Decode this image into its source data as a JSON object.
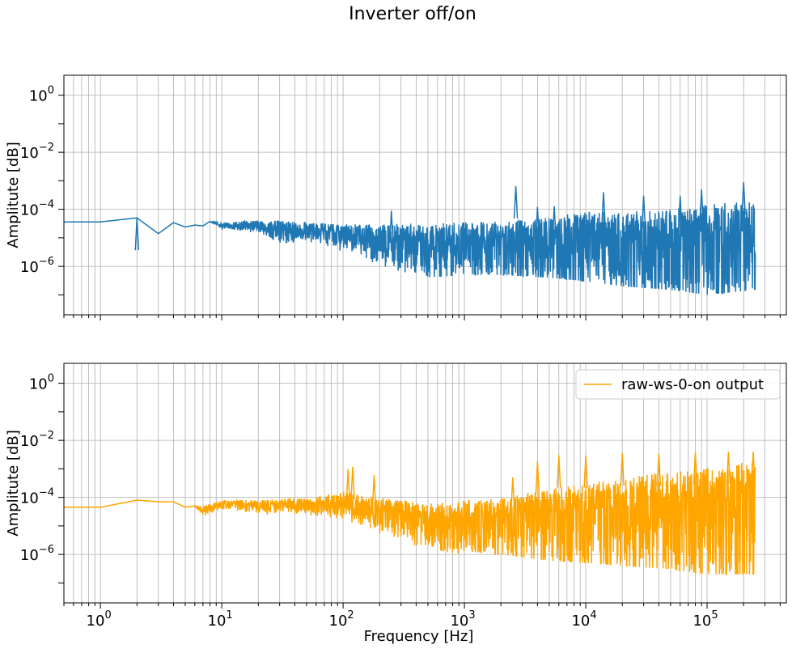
{
  "figure": {
    "suptitle": "Inverter off/on"
  },
  "chart_data": [
    {
      "type": "line",
      "xscale": "log",
      "yscale": "log",
      "xlim": [
        0.5,
        450000
      ],
      "ylim": [
        2e-08,
        5
      ],
      "xlabel": "",
      "ylabel": "Amplitute [dB]",
      "grid": "major and minor",
      "xticklabels_visible": false,
      "xticks": [
        {
          "value": 1,
          "base": "10",
          "exp": "0"
        },
        {
          "value": 10,
          "base": "10",
          "exp": "1"
        },
        {
          "value": 100,
          "base": "10",
          "exp": "2"
        },
        {
          "value": 1000,
          "base": "10",
          "exp": "3"
        },
        {
          "value": 10000,
          "base": "10",
          "exp": "4"
        },
        {
          "value": 100000,
          "base": "10",
          "exp": "5"
        }
      ],
      "yticks": [
        {
          "value": 1,
          "base": "10",
          "exp": "0"
        },
        {
          "value": 0.01,
          "base": "10",
          "exp": "−2"
        },
        {
          "value": 0.0001,
          "base": "10",
          "exp": "−4"
        },
        {
          "value": 1e-06,
          "base": "10",
          "exp": "−6"
        }
      ],
      "series": [
        {
          "color": "#1f77b4",
          "x_range": [
            0.5,
            250000
          ],
          "envelope": [
            {
              "f": 0.5,
              "lo": 3.6e-05,
              "hi": 3.6e-05
            },
            {
              "f": 1,
              "lo": 3.6e-05,
              "hi": 3.6e-05
            },
            {
              "f": 2,
              "lo": 5e-05,
              "hi": 5e-05
            },
            {
              "f": 3,
              "lo": 1.4e-05,
              "hi": 1.4e-05
            },
            {
              "f": 4,
              "lo": 3.4e-05,
              "hi": 3.4e-05
            },
            {
              "f": 5,
              "lo": 2.4e-05,
              "hi": 2.4e-05
            },
            {
              "f": 6,
              "lo": 2.8e-05,
              "hi": 2.8e-05
            },
            {
              "f": 7,
              "lo": 2.6e-05,
              "hi": 2.6e-05
            },
            {
              "f": 8,
              "lo": 3.8e-05,
              "hi": 3.8e-05
            },
            {
              "f": 10,
              "lo": 1.6e-05,
              "hi": 3.5e-05
            },
            {
              "f": 20,
              "lo": 1.2e-05,
              "hi": 4.2e-05
            },
            {
              "f": 30,
              "lo": 4e-06,
              "hi": 4e-05
            },
            {
              "f": 50,
              "lo": 6e-06,
              "hi": 3.5e-05
            },
            {
              "f": 100,
              "lo": 3e-06,
              "hi": 3e-05
            },
            {
              "f": 200,
              "lo": 1e-06,
              "hi": 3e-05
            },
            {
              "f": 500,
              "lo": 4e-07,
              "hi": 3.2e-05
            },
            {
              "f": 1000,
              "lo": 5e-07,
              "hi": 3.5e-05
            },
            {
              "f": 2000,
              "lo": 5e-07,
              "hi": 4e-05
            },
            {
              "f": 5000,
              "lo": 4e-07,
              "hi": 5e-05
            },
            {
              "f": 10000,
              "lo": 3e-07,
              "hi": 9e-05
            },
            {
              "f": 20000,
              "lo": 2e-07,
              "hi": 8e-05
            },
            {
              "f": 50000,
              "lo": 1.5e-07,
              "hi": 0.0001
            },
            {
              "f": 100000,
              "lo": 1e-07,
              "hi": 0.00015
            },
            {
              "f": 250000,
              "lo": 1.5e-07,
              "hi": 0.0002
            }
          ],
          "peaks": [
            {
              "f": 2,
              "value": 5e-05
            },
            {
              "f": 250,
              "value": 9e-05
            },
            {
              "f": 2650,
              "value": 0.00065
            },
            {
              "f": 4000,
              "value": 0.00012
            },
            {
              "f": 5500,
              "value": 0.00013
            },
            {
              "f": 14000,
              "value": 0.0004
            },
            {
              "f": 30000,
              "value": 0.0003
            },
            {
              "f": 60000,
              "value": 0.0003
            },
            {
              "f": 90000,
              "value": 0.0005
            },
            {
              "f": 200000,
              "value": 0.0009
            }
          ]
        }
      ]
    },
    {
      "type": "line",
      "xscale": "log",
      "yscale": "log",
      "xlim": [
        0.5,
        450000
      ],
      "ylim": [
        2e-08,
        5
      ],
      "xlabel": "Frequency [Hz]",
      "ylabel": "Amplitute [dB]",
      "grid": "major and minor",
      "legend": "top-right",
      "xticks": [
        {
          "value": 1,
          "base": "10",
          "exp": "0"
        },
        {
          "value": 10,
          "base": "10",
          "exp": "1"
        },
        {
          "value": 100,
          "base": "10",
          "exp": "2"
        },
        {
          "value": 1000,
          "base": "10",
          "exp": "3"
        },
        {
          "value": 10000,
          "base": "10",
          "exp": "4"
        },
        {
          "value": 100000,
          "base": "10",
          "exp": "5"
        }
      ],
      "yticks": [
        {
          "value": 1,
          "base": "10",
          "exp": "0"
        },
        {
          "value": 0.01,
          "base": "10",
          "exp": "−2"
        },
        {
          "value": 0.0001,
          "base": "10",
          "exp": "−4"
        },
        {
          "value": 1e-06,
          "base": "10",
          "exp": "−6"
        }
      ],
      "series": [
        {
          "name": "raw-ws-0-on  output",
          "color": "#ffa500",
          "x_range": [
            0.5,
            250000
          ],
          "envelope": [
            {
              "f": 0.5,
              "lo": 4.5e-05,
              "hi": 4.5e-05
            },
            {
              "f": 1,
              "lo": 4.5e-05,
              "hi": 4.5e-05
            },
            {
              "f": 2,
              "lo": 8e-05,
              "hi": 8e-05
            },
            {
              "f": 3,
              "lo": 7e-05,
              "hi": 7e-05
            },
            {
              "f": 4,
              "lo": 7e-05,
              "hi": 7e-05
            },
            {
              "f": 5,
              "lo": 4.5e-05,
              "hi": 4.5e-05
            },
            {
              "f": 6,
              "lo": 5e-05,
              "hi": 5e-05
            },
            {
              "f": 7,
              "lo": 1.6e-05,
              "hi": 5e-05
            },
            {
              "f": 10,
              "lo": 3e-05,
              "hi": 8e-05
            },
            {
              "f": 20,
              "lo": 2e-05,
              "hi": 8e-05
            },
            {
              "f": 50,
              "lo": 2e-05,
              "hi": 0.0001
            },
            {
              "f": 100,
              "lo": 1.5e-05,
              "hi": 0.00015
            },
            {
              "f": 200,
              "lo": 5e-06,
              "hi": 0.0001
            },
            {
              "f": 500,
              "lo": 1.5e-06,
              "hi": 6e-05
            },
            {
              "f": 1000,
              "lo": 1e-06,
              "hi": 8e-05
            },
            {
              "f": 2000,
              "lo": 1e-06,
              "hi": 0.0001
            },
            {
              "f": 5000,
              "lo": 6e-07,
              "hi": 0.0002
            },
            {
              "f": 10000,
              "lo": 5e-07,
              "hi": 0.0003
            },
            {
              "f": 20000,
              "lo": 4e-07,
              "hi": 0.0005
            },
            {
              "f": 50000,
              "lo": 3e-07,
              "hi": 0.0008
            },
            {
              "f": 100000,
              "lo": 2e-07,
              "hi": 0.0012
            },
            {
              "f": 250000,
              "lo": 2e-07,
              "hi": 0.002
            }
          ],
          "peaks": [
            {
              "f": 110,
              "value": 0.001
            },
            {
              "f": 120,
              "value": 0.0012
            },
            {
              "f": 180,
              "value": 0.0006
            },
            {
              "f": 2500,
              "value": 0.0005
            },
            {
              "f": 4000,
              "value": 0.0018
            },
            {
              "f": 6000,
              "value": 0.003
            },
            {
              "f": 10000,
              "value": 0.003
            },
            {
              "f": 20000,
              "value": 0.0035
            },
            {
              "f": 40000,
              "value": 0.0035
            },
            {
              "f": 80000,
              "value": 0.0038
            },
            {
              "f": 150000,
              "value": 0.004
            },
            {
              "f": 240000,
              "value": 0.004
            }
          ]
        }
      ]
    }
  ]
}
